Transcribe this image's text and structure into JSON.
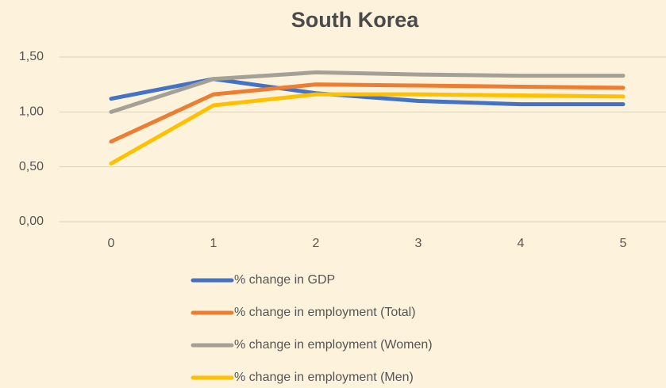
{
  "chart_data": {
    "type": "line",
    "title": "South Korea",
    "categories": [
      "0",
      "1",
      "2",
      "3",
      "4",
      "5"
    ],
    "series": [
      {
        "name": "% change in GDP",
        "color": "#4472c4",
        "values": [
          1.12,
          1.3,
          1.17,
          1.1,
          1.07,
          1.07
        ]
      },
      {
        "name": "% change in employment (Total)",
        "color": "#ed7d31",
        "values": [
          0.73,
          1.16,
          1.25,
          1.24,
          1.23,
          1.22
        ]
      },
      {
        "name": "% change in employment (Women)",
        "color": "#a5a096",
        "values": [
          1.0,
          1.3,
          1.36,
          1.34,
          1.33,
          1.33
        ]
      },
      {
        "name": "% change in employment (Men)",
        "color": "#ffc000",
        "values": [
          0.53,
          1.06,
          1.16,
          1.16,
          1.15,
          1.14
        ]
      }
    ],
    "ylim": [
      0,
      1.5
    ],
    "yticks": [
      {
        "value": 0,
        "label": "0,00"
      },
      {
        "value": 0.5,
        "label": "0,50"
      },
      {
        "value": 1,
        "label": "1,00"
      },
      {
        "value": 1.5,
        "label": "1,50"
      }
    ],
    "grid": true,
    "legend": "bottom"
  }
}
